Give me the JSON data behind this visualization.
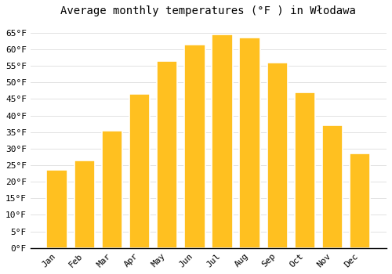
{
  "title": "Average monthly temperatures (°F ) in Włodawa",
  "months": [
    "Jan",
    "Feb",
    "Mar",
    "Apr",
    "May",
    "Jun",
    "Jul",
    "Aug",
    "Sep",
    "Oct",
    "Nov",
    "Dec"
  ],
  "values": [
    23.5,
    26.5,
    35.5,
    46.5,
    56.5,
    61.5,
    64.5,
    63.5,
    56.0,
    47.0,
    37.0,
    28.5
  ],
  "bar_color": "#FFC020",
  "bar_edge_color": "#FFFFFF",
  "background_color": "#FFFFFF",
  "grid_color": "#DDDDDD",
  "ylim": [
    0,
    68
  ],
  "yticks": [
    0,
    5,
    10,
    15,
    20,
    25,
    30,
    35,
    40,
    45,
    50,
    55,
    60,
    65
  ],
  "ytick_labels": [
    "0°F",
    "5°F",
    "10°F",
    "15°F",
    "20°F",
    "25°F",
    "30°F",
    "35°F",
    "40°F",
    "45°F",
    "50°F",
    "55°F",
    "60°F",
    "65°F"
  ],
  "title_fontsize": 10,
  "tick_fontsize": 8,
  "font_family": "monospace",
  "bar_width": 0.75
}
